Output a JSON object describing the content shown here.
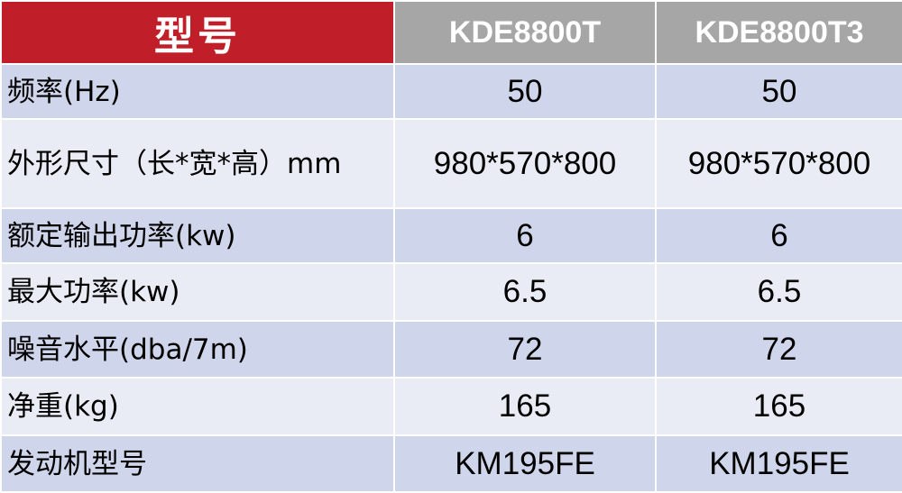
{
  "header": {
    "title": "型号",
    "models": [
      "KDE8800T",
      "KDE8800T3"
    ]
  },
  "rows": [
    {
      "label": "频率(Hz)",
      "values": [
        "50",
        "50"
      ]
    },
    {
      "label": "外形尺寸（长*宽*高）mm",
      "values": [
        "980*570*800",
        "980*570*800"
      ]
    },
    {
      "label": "额定输出功率(kw)",
      "values": [
        "6",
        "6"
      ]
    },
    {
      "label": "最大功率(kw)",
      "values": [
        "6.5",
        "6.5"
      ]
    },
    {
      "label": "噪音水平(dba/7m)",
      "values": [
        "72",
        "72"
      ]
    },
    {
      "label": "净重(kg)",
      "values": [
        "165",
        "165"
      ]
    },
    {
      "label": "发动机型号",
      "values": [
        "KM195FE",
        "KM195FE"
      ]
    }
  ],
  "colors": {
    "title_bg": "#c01f29",
    "model_bg": "#a6a6a6",
    "row_dark": "#cfd5ea",
    "row_light": "#e9ecf5"
  }
}
